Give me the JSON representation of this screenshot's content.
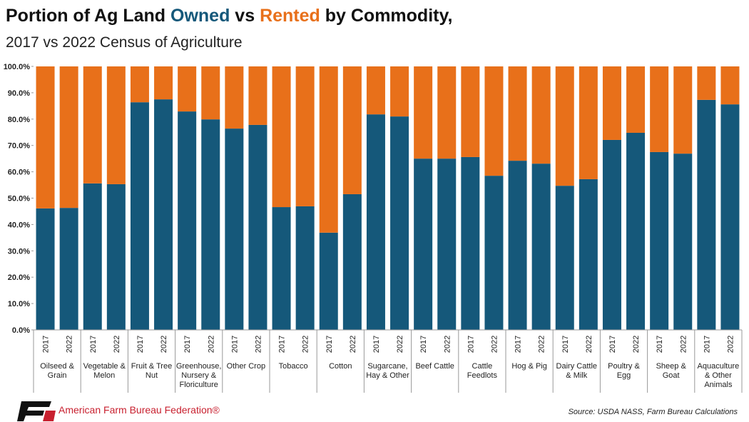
{
  "chart_data": {
    "type": "stacked-bar",
    "title_parts": [
      "Portion of Ag Land",
      "vs",
      "by Commodity,"
    ],
    "subtitle": "2017 vs 2022 Census of Agriculture",
    "categories": [
      "2017",
      "2022",
      "2017",
      "2022",
      "2017",
      "2022",
      "2017",
      "2022",
      "2017",
      "2022",
      "2017",
      "2022",
      "2017",
      "2022",
      "2017",
      "2022",
      "2017",
      "2022",
      "2017",
      "2022",
      "2017",
      "2022",
      "2017",
      "2022",
      "2017",
      "2022",
      "2017",
      "2022",
      "2017",
      "2022"
    ],
    "group_labels": [
      "Oilseed & Grain",
      "Vegetable & Melon",
      "Fruit & Tree Nut",
      "Greenhouse, Nursery & Floriculture",
      "Other Crop",
      "Tobacco",
      "Cotton",
      "Sugarcane, Hay & Other",
      "Beef Cattle",
      "Cattle Feedlots",
      "Hog & Pig",
      "Dairy Cattle & Milk",
      "Poultry & Egg",
      "Sheep & Goat",
      "Aquaculture & Other Animals"
    ],
    "series": [
      {
        "name": "Owned",
        "color": "#15587a",
        "values": [
          46.1,
          46.3,
          55.6,
          55.3,
          86.4,
          87.5,
          82.9,
          79.9,
          76.4,
          77.8,
          46.6,
          46.9,
          36.9,
          51.5,
          81.8,
          81.0,
          65.0,
          65.0,
          65.6,
          58.5,
          64.2,
          63.1,
          54.7,
          57.2,
          72.1,
          74.8,
          67.5,
          66.9,
          87.3,
          85.6
        ]
      },
      {
        "name": "Rented",
        "color": "#e8701a",
        "values": [
          53.9,
          53.7,
          44.4,
          44.7,
          13.6,
          12.5,
          17.1,
          20.1,
          23.6,
          22.2,
          53.4,
          53.1,
          63.1,
          48.5,
          18.2,
          19.0,
          35.0,
          35.0,
          34.4,
          41.5,
          35.8,
          36.9,
          45.3,
          42.8,
          27.9,
          25.2,
          32.5,
          33.1,
          12.7,
          14.4
        ]
      }
    ],
    "ylim": [
      0,
      100
    ],
    "yticks": [
      {
        "value": 0,
        "label": "0.0%"
      },
      {
        "value": 10,
        "label": "10.0%"
      },
      {
        "value": 20,
        "label": "20.0%"
      },
      {
        "value": 30,
        "label": "30.0%"
      },
      {
        "value": 40,
        "label": "40.0%"
      },
      {
        "value": 50,
        "label": "50.0%"
      },
      {
        "value": 60,
        "label": "60.0%"
      },
      {
        "value": 70,
        "label": "70.0%"
      },
      {
        "value": 80,
        "label": "80.0%"
      },
      {
        "value": 90,
        "label": "90.0%"
      },
      {
        "value": 100,
        "label": "100.0%"
      }
    ],
    "grid": false
  },
  "footer": {
    "org": "American Farm Bureau Federation®",
    "source": "Source: USDA NASS, Farm Bureau Calculations"
  }
}
